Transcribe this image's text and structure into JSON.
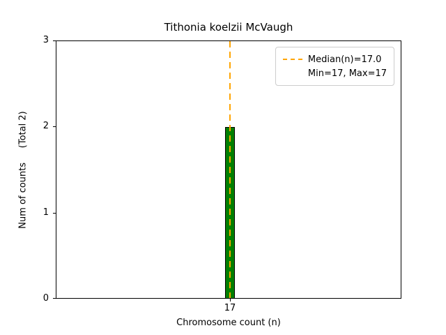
{
  "chart_data": {
    "type": "bar",
    "title": "Tithonia koelzii McVaugh",
    "xlabel": "Chromosome count (n)",
    "ylabel": "Num of counts     (Total 2)",
    "categories": [
      "17"
    ],
    "values": [
      2
    ],
    "total": 2,
    "ylim": [
      0,
      3
    ],
    "yticks": [
      0,
      1,
      2,
      3
    ],
    "xticks": [
      "17"
    ],
    "median": 17.0,
    "min": 17,
    "max": 17,
    "bar_color": "#008000",
    "bar_edge_color": "#000000",
    "median_line_color": "#ffa500",
    "legend_position": "upper right",
    "grid": false,
    "legend": {
      "median_label": "Median(n)=17.0",
      "minmax_label": "Min=17, Max=17"
    }
  }
}
